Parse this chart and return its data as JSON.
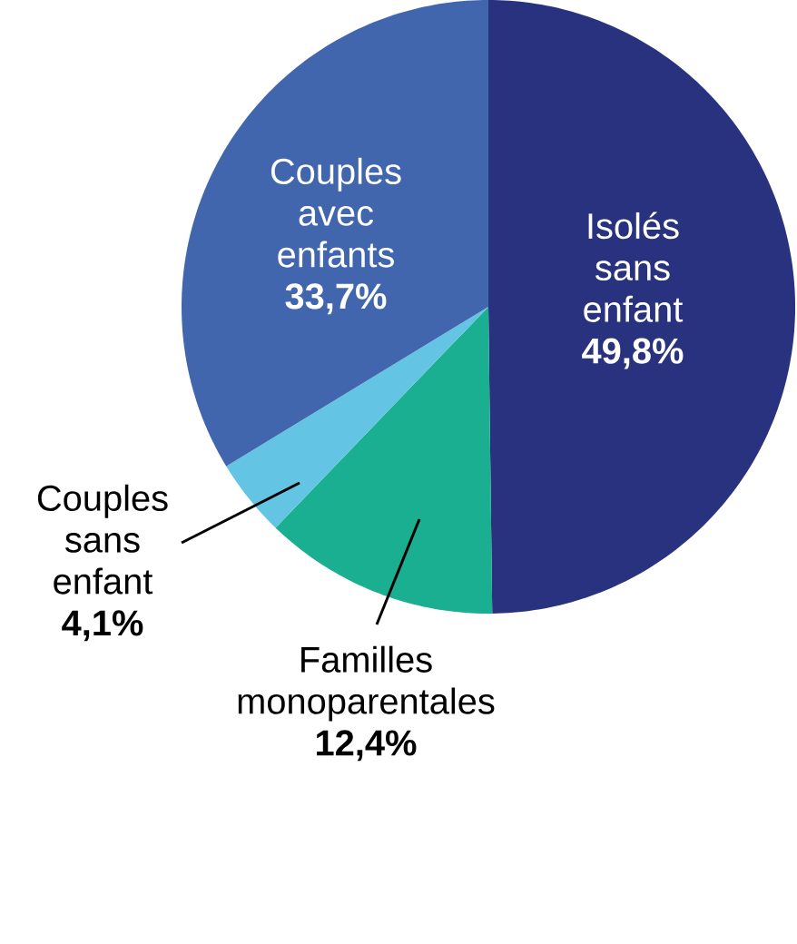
{
  "chart_data": {
    "type": "pie",
    "categories": [
      "Isolés sans enfant",
      "Familles monoparentales",
      "Couples sans enfant",
      "Couples avec enfants"
    ],
    "values": [
      49.8,
      12.4,
      4.1,
      33.7
    ],
    "value_labels": [
      "49,8%",
      "12,4%",
      "4,1%",
      "33,7%"
    ],
    "colors": [
      "#29327f",
      "#1baf91",
      "#63c5e3",
      "#4266ad"
    ]
  }
}
